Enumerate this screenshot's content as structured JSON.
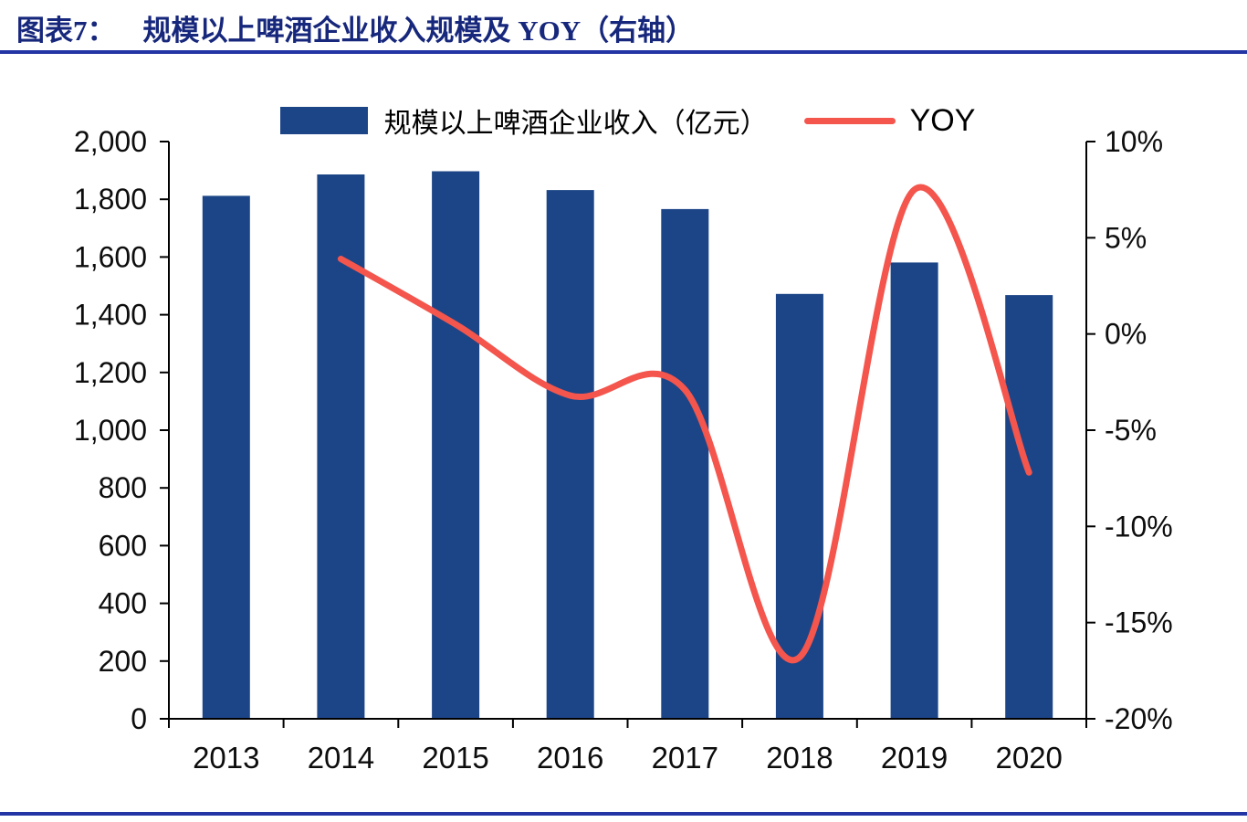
{
  "page": {
    "header": {
      "label": "图表7：",
      "title": "规模以上啤酒企业收入规模及 YOY（右轴）"
    }
  },
  "legend": {
    "bar_label": "规模以上啤酒企业收入（亿元）",
    "line_label": "YOY"
  },
  "colors": {
    "bar": "#1c4587",
    "line": "#f4554c",
    "title_text": "#16277c",
    "rule": "#2334a4",
    "axis": "#000000"
  },
  "chart_data": {
    "type": "bar",
    "title": "规模以上啤酒企业收入规模及 YOY（右轴）",
    "categories": [
      "2013",
      "2014",
      "2015",
      "2016",
      "2017",
      "2018",
      "2019",
      "2020"
    ],
    "series": [
      {
        "name": "规模以上啤酒企业收入（亿元）",
        "type": "bar",
        "axis": "left",
        "values": [
          1812,
          1886,
          1897,
          1832,
          1766,
          1472,
          1581,
          1468
        ]
      },
      {
        "name": "YOY",
        "type": "line",
        "axis": "right",
        "values": [
          null,
          3.9,
          0.5,
          -3.2,
          -2.9,
          -16.8,
          7.5,
          -7.2
        ]
      }
    ],
    "left_axis": {
      "min": 0,
      "max": 2000,
      "step": 200,
      "tick_labels": [
        "0",
        "200",
        "400",
        "600",
        "800",
        "1,000",
        "1,200",
        "1,400",
        "1,600",
        "1,800",
        "2,000"
      ]
    },
    "right_axis": {
      "min": -20,
      "max": 10,
      "step": 5,
      "tick_labels": [
        "-20%",
        "-15%",
        "-10%",
        "-5%",
        "0%",
        "5%",
        "10%"
      ]
    },
    "legend_position": "top",
    "grid": false
  }
}
